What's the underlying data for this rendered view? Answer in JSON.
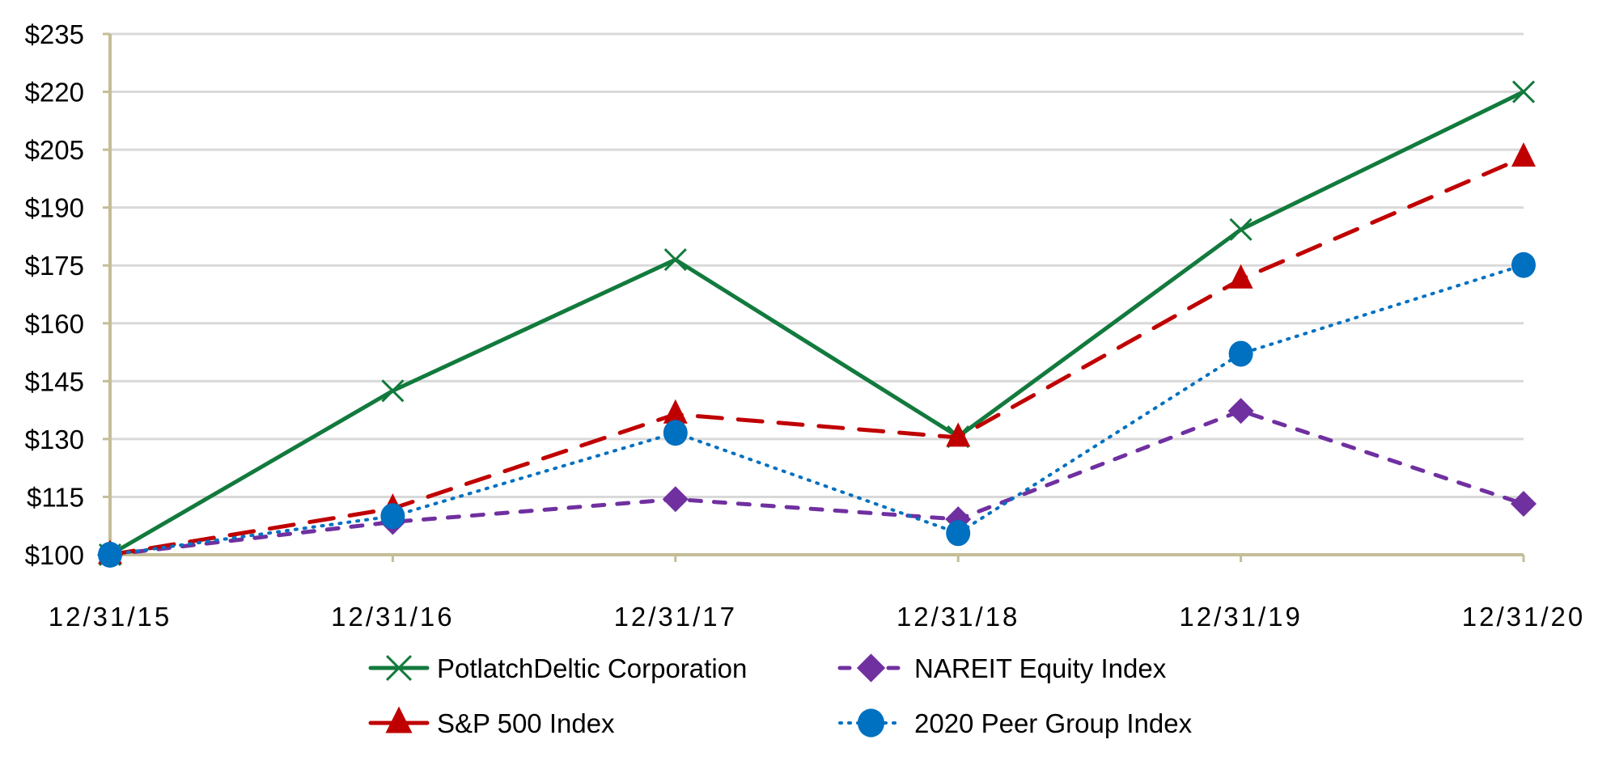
{
  "chart_data": {
    "type": "line",
    "title": "",
    "xlabel": "",
    "ylabel": "",
    "categories": [
      "12/31/15",
      "12/31/16",
      "12/31/17",
      "12/31/18",
      "12/31/19",
      "12/31/20"
    ],
    "ylim": [
      100,
      235
    ],
    "yticks": [
      100,
      115,
      130,
      145,
      160,
      175,
      190,
      205,
      220,
      235
    ],
    "ytick_labels": [
      "$100",
      "$115",
      "$130",
      "$145",
      "$160",
      "$175",
      "$190",
      "$205",
      "$220",
      "$235"
    ],
    "grid": true,
    "legend_position": "bottom",
    "series": [
      {
        "name": "PotlatchDeltic Corporation",
        "marker": "x",
        "line_style": "solid",
        "color": "#127A3D",
        "values": [
          100,
          142.5,
          176.5,
          130.6,
          184.3,
          220.0
        ]
      },
      {
        "name": "NAREIT Equity Index",
        "marker": "diamond",
        "line_style": "dashed",
        "color": "#7030A0",
        "values": [
          100,
          108.5,
          114.4,
          109.2,
          137.3,
          113.2
        ]
      },
      {
        "name": "S&P 500 Index",
        "marker": "triangle",
        "line_style": "long-dash",
        "color": "#C00000",
        "values": [
          100,
          112.0,
          136.4,
          130.4,
          171.4,
          203.0
        ]
      },
      {
        "name": "2020 Peer Group Index",
        "marker": "circle",
        "line_style": "dotted",
        "color": "#0070C0",
        "values": [
          100,
          110.0,
          131.6,
          105.6,
          152.1,
          175.1
        ]
      }
    ],
    "legend_order": [
      0,
      1,
      2,
      3
    ],
    "axis_color": "#C4BD97",
    "grid_color": "#D9D9D9"
  }
}
